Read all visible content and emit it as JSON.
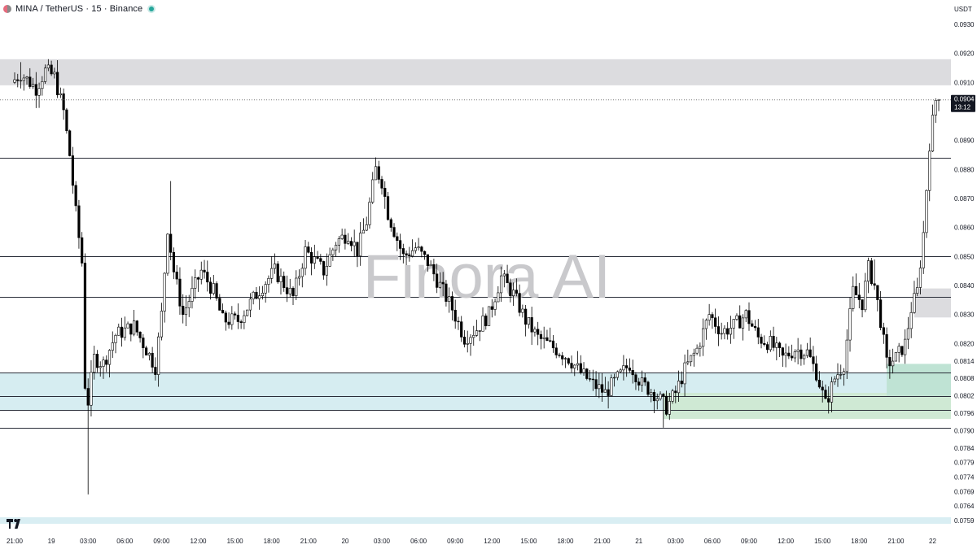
{
  "header": {
    "symbol": "MINA / TetherUS · 15 · Binance"
  },
  "watermark": "Finora AI",
  "colors": {
    "candle_up_fill": "#ffffff",
    "candle_down_fill": "#000000",
    "candle_outline": "#000000",
    "resistance_zone": "#dcdcdf",
    "support_zone": "#d6edf1",
    "demand_zone": "#cfe9d4",
    "demand_zone_recent": "#bfe3d4",
    "price_tag_bg": "#131722",
    "price_tag_text": "#ffffff",
    "axis_text": "#131722",
    "watermark": "#c9c9cc",
    "live_dot": "#26a69a"
  },
  "chart_data": {
    "type": "candlestick",
    "symbol": "MINA/USDT",
    "timeframe": "15",
    "exchange": "Binance",
    "y_axis": {
      "unit_label": "USDT",
      "range": [
        0.0757,
        0.0935
      ],
      "ticks": [
        "0.0930",
        "0.0920",
        "0.0910",
        "0.0890",
        "0.0880",
        "0.0870",
        "0.0860",
        "0.0850",
        "0.0840",
        "0.0830",
        "0.0820",
        "0.0814",
        "0.0808",
        "0.0802",
        "0.0796",
        "0.0790",
        "0.0784",
        "0.0779",
        "0.0774",
        "0.0769",
        "0.0764",
        "0.0759"
      ]
    },
    "x_axis": {
      "labels": [
        "21:00",
        "19",
        "03:00",
        "06:00",
        "09:00",
        "12:00",
        "15:00",
        "18:00",
        "21:00",
        "20",
        "03:00",
        "06:00",
        "09:00",
        "12:00",
        "15:00",
        "18:00",
        "21:00",
        "21",
        "03:00",
        "06:00",
        "09:00",
        "12:00",
        "15:00",
        "18:00",
        "21:00",
        "22"
      ],
      "start": "18 21:00",
      "end": "22 00:30",
      "bar_minutes": 15
    },
    "last_price": {
      "value": 0.0904,
      "label": "0.0904",
      "countdown": "13:12"
    },
    "horizontal_levels": [
      0.0884,
      0.085,
      0.0836,
      0.081,
      0.0802,
      0.0797,
      0.0791
    ],
    "zones": [
      {
        "kind": "resistance",
        "from": 0.0909,
        "to": 0.0918
      },
      {
        "kind": "support",
        "from": 0.0797,
        "to": 0.081
      },
      {
        "kind": "demand",
        "from": 0.0794,
        "to": 0.0803,
        "start": "21 02:00"
      },
      {
        "kind": "demand_recent",
        "from": 0.0802,
        "to": 0.0813,
        "start": "21 20:15"
      },
      {
        "kind": "supply_small",
        "from": 0.0829,
        "to": 0.0839,
        "start": "21 22:30"
      }
    ],
    "price_path": [
      [
        "18 21:00",
        0.091
      ],
      [
        "18 21:45",
        0.0913
      ],
      [
        "18 23:00",
        0.0908
      ],
      [
        "18 23:45",
        0.0914
      ],
      [
        "19 00:30",
        0.0912
      ],
      [
        "19 01:15",
        0.09
      ],
      [
        "19 01:45",
        0.0885
      ],
      [
        "19 02:15",
        0.0865
      ],
      [
        "19 02:45",
        0.0848
      ],
      [
        "19 03:00",
        0.0806
      ],
      [
        "19 03:15",
        0.08
      ],
      [
        "19 03:45",
        0.0815
      ],
      [
        "19 04:30",
        0.0813
      ],
      [
        "19 05:30",
        0.0823
      ],
      [
        "19 07:00",
        0.0826
      ],
      [
        "19 08:00",
        0.0818
      ],
      [
        "19 08:45",
        0.0812
      ],
      [
        "19 09:15",
        0.083
      ],
      [
        "19 09:45",
        0.086
      ],
      [
        "19 10:15",
        0.0845
      ],
      [
        "19 11:00",
        0.083
      ],
      [
        "19 12:30",
        0.0845
      ],
      [
        "19 13:30",
        0.0838
      ],
      [
        "19 14:15",
        0.0828
      ],
      [
        "19 15:30",
        0.0828
      ],
      [
        "19 16:30",
        0.0834
      ],
      [
        "19 17:30",
        0.084
      ],
      [
        "19 18:30",
        0.0845
      ],
      [
        "19 20:00",
        0.0836
      ],
      [
        "19 21:00",
        0.0852
      ],
      [
        "19 22:30",
        0.0845
      ],
      [
        "19 23:30",
        0.0855
      ],
      [
        "20 00:30",
        0.0858
      ],
      [
        "20 01:15",
        0.0852
      ],
      [
        "20 02:00",
        0.0862
      ],
      [
        "20 02:45",
        0.088
      ],
      [
        "20 03:15",
        0.0876
      ],
      [
        "20 03:45",
        0.0865
      ],
      [
        "20 05:00",
        0.085
      ],
      [
        "20 06:00",
        0.0853
      ],
      [
        "20 07:00",
        0.0848
      ],
      [
        "20 08:00",
        0.084
      ],
      [
        "20 09:00",
        0.0832
      ],
      [
        "20 10:00",
        0.0822
      ],
      [
        "20 11:00",
        0.0825
      ],
      [
        "20 12:00",
        0.083
      ],
      [
        "20 13:00",
        0.0843
      ],
      [
        "20 14:00",
        0.0837
      ],
      [
        "20 15:00",
        0.0828
      ],
      [
        "20 16:00",
        0.0822
      ],
      [
        "20 17:30",
        0.0818
      ],
      [
        "20 18:30",
        0.0815
      ],
      [
        "20 19:30",
        0.081
      ],
      [
        "20 20:30",
        0.0806
      ],
      [
        "20 21:30",
        0.0803
      ],
      [
        "20 22:30",
        0.0808
      ],
      [
        "20 23:30",
        0.0813
      ],
      [
        "21 00:30",
        0.0806
      ],
      [
        "21 01:30",
        0.0803
      ],
      [
        "21 02:30",
        0.0798
      ],
      [
        "21 03:15",
        0.0803
      ],
      [
        "21 04:00",
        0.0811
      ],
      [
        "21 05:00",
        0.0818
      ],
      [
        "21 06:00",
        0.083
      ],
      [
        "21 07:00",
        0.0824
      ],
      [
        "21 08:00",
        0.0826
      ],
      [
        "21 09:00",
        0.083
      ],
      [
        "21 10:00",
        0.0822
      ],
      [
        "21 11:00",
        0.082
      ],
      [
        "21 12:00",
        0.0815
      ],
      [
        "21 13:00",
        0.0818
      ],
      [
        "21 14:00",
        0.0817
      ],
      [
        "21 14:45",
        0.081
      ],
      [
        "21 15:30",
        0.0799
      ],
      [
        "21 16:15",
        0.0808
      ],
      [
        "21 17:00",
        0.0813
      ],
      [
        "21 17:45",
        0.0838
      ],
      [
        "21 18:30",
        0.0834
      ],
      [
        "21 19:00",
        0.0846
      ],
      [
        "21 19:30",
        0.084
      ],
      [
        "21 20:00",
        0.0828
      ],
      [
        "21 20:30",
        0.0813
      ],
      [
        "21 21:15",
        0.0815
      ],
      [
        "21 22:00",
        0.082
      ],
      [
        "21 22:30",
        0.0832
      ],
      [
        "21 23:00",
        0.0838
      ],
      [
        "21 23:30",
        0.0858
      ],
      [
        "22 00:00",
        0.0889
      ],
      [
        "22 00:30",
        0.0904
      ]
    ],
    "spikes": [
      {
        "at": "19 03:00",
        "low": 0.0768
      },
      {
        "at": "21 02:00",
        "low": 0.0791
      },
      {
        "at": "18 21:30",
        "high": 0.0917
      },
      {
        "at": "19 09:45",
        "high": 0.0876
      },
      {
        "at": "20 02:45",
        "high": 0.0883
      },
      {
        "at": "21 19:15",
        "high": 0.0849
      }
    ]
  }
}
